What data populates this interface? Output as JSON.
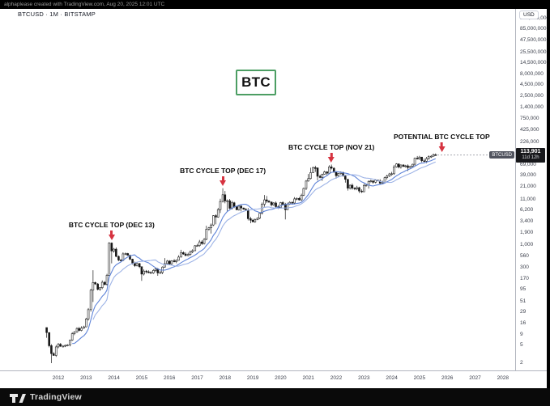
{
  "top_bar": {
    "attribution": "alphaplease created with TradingView.com, Aug 20, 2025 12:01 UTC"
  },
  "header": {
    "symbol_title": "BTCUSD · 1M · BITSTAMP"
  },
  "watermark": {
    "label": "BTC"
  },
  "price_badge": {
    "symbol": "BTCUSD",
    "price": "113,901",
    "countdown": "11d 12h"
  },
  "footer": {
    "brand": "TradingView"
  },
  "colors": {
    "accent_green": "#4c9e63",
    "arrow_red": "#d63340",
    "ma_fast": "#5f84d8",
    "ma_slow": "#9db3e6",
    "candle_up": "#ffffff",
    "candle_down": "#161616",
    "candle_stroke": "#1a1a1a",
    "price_line": "#8a8d97"
  },
  "chart_data": {
    "type": "candlestick",
    "symbol": "BTCUSD",
    "timeframe": "1M",
    "exchange": "BITSTAMP",
    "y_scale": "log",
    "y_unit": "USD",
    "last_price": 113901,
    "ma_periods": [
      12,
      21
    ],
    "y_axis_labels": [
      "150,000,000",
      "85,000,000",
      "47,500,000",
      "25,500,000",
      "14,500,000",
      "8,000,000",
      "4,500,000",
      "2,500,000",
      "1,400,000",
      "750,000",
      "425,000",
      "226,000",
      "69,000",
      "39,000",
      "21,000",
      "11,000",
      "6,200",
      "3,400",
      "1,900",
      "1,000",
      "560",
      "300",
      "170",
      "95",
      "51",
      "29",
      "16",
      "9",
      "5",
      "2"
    ],
    "x_axis_years": [
      "2012",
      "2013",
      "2014",
      "2015",
      "2016",
      "2017",
      "2018",
      "2019",
      "2020",
      "2021",
      "2022",
      "2023",
      "2024",
      "2025",
      "2026",
      "2027",
      "2028"
    ],
    "annotations": [
      {
        "text": "BTC CYCLE TOP (DEC 13)",
        "t": 2013.92,
        "price": 1250
      },
      {
        "text": "BTC CYCLE TOP (DEC 17)",
        "t": 2017.92,
        "price": 21500
      },
      {
        "text": "BTC CYCLE TOP (NOV 21)",
        "t": 2021.83,
        "price": 73000
      },
      {
        "text": "POTENTIAL BTC CYCLE TOP",
        "t": 2025.8,
        "price": 127000
      }
    ],
    "candles": [
      [
        2011.58,
        10,
        11.5,
        7.6
      ],
      [
        2011.67,
        5,
        9,
        4.6
      ],
      [
        2011.75,
        3.3,
        5.4,
        2
      ],
      [
        2011.83,
        3
      ],
      [
        2011.92,
        4.7
      ],
      [
        2012.0,
        5.4
      ],
      [
        2012.08,
        4.9
      ],
      [
        2012.17,
        4.9
      ],
      [
        2012.25,
        5.1
      ],
      [
        2012.33,
        5.2
      ],
      [
        2012.42,
        6.7
      ],
      [
        2012.5,
        9.4
      ],
      [
        2012.58,
        10.2
      ],
      [
        2012.67,
        12.4
      ],
      [
        2012.75,
        11.2
      ],
      [
        2012.83,
        12.6
      ],
      [
        2012.92,
        13.5
      ],
      [
        2013.0,
        20.4
      ],
      [
        2013.08,
        33.4
      ],
      [
        2013.17,
        93,
        100,
        30
      ],
      [
        2013.25,
        139,
        266,
        50
      ],
      [
        2013.33,
        129
      ],
      [
        2013.42,
        97
      ],
      [
        2013.5,
        106
      ],
      [
        2013.58,
        141
      ],
      [
        2013.67,
        126
      ],
      [
        2013.75,
        204
      ],
      [
        2013.83,
        1113,
        1163,
        198
      ],
      [
        2013.92,
        732,
        1150,
        382
      ],
      [
        2014.0,
        806
      ],
      [
        2014.08,
        550
      ],
      [
        2014.17,
        454
      ],
      [
        2014.25,
        446
      ],
      [
        2014.33,
        628
      ],
      [
        2014.42,
        640
      ],
      [
        2014.5,
        583
      ],
      [
        2014.58,
        475
      ],
      [
        2014.67,
        387
      ],
      [
        2014.75,
        338
      ],
      [
        2014.83,
        378
      ],
      [
        2014.92,
        320
      ],
      [
        2015.0,
        217,
        320,
        152
      ],
      [
        2015.08,
        254
      ],
      [
        2015.17,
        244
      ],
      [
        2015.25,
        236
      ],
      [
        2015.33,
        230
      ],
      [
        2015.42,
        263
      ],
      [
        2015.5,
        284
      ],
      [
        2015.58,
        230,
        null,
        198
      ],
      [
        2015.67,
        236
      ],
      [
        2015.75,
        314
      ],
      [
        2015.83,
        377,
        504
      ],
      [
        2015.92,
        430
      ],
      [
        2016.0,
        370
      ],
      [
        2016.08,
        437
      ],
      [
        2016.17,
        416
      ],
      [
        2016.25,
        448
      ],
      [
        2016.33,
        531
      ],
      [
        2016.42,
        670,
        780,
        520
      ],
      [
        2016.5,
        624
      ],
      [
        2016.58,
        575
      ],
      [
        2016.67,
        610
      ],
      [
        2016.75,
        700
      ],
      [
        2016.83,
        742
      ],
      [
        2016.92,
        963
      ],
      [
        2017.0,
        970
      ],
      [
        2017.08,
        1180
      ],
      [
        2017.17,
        1080,
        1290
      ],
      [
        2017.25,
        1350
      ],
      [
        2017.33,
        2300,
        2760
      ],
      [
        2017.42,
        2480
      ],
      [
        2017.5,
        2875,
        null,
        1830
      ],
      [
        2017.58,
        4703
      ],
      [
        2017.67,
        4360,
        null,
        2970
      ],
      [
        2017.75,
        6440
      ],
      [
        2017.83,
        9900,
        11400,
        5400
      ],
      [
        2017.92,
        14100,
        19900,
        9400
      ],
      [
        2018.0,
        10200,
        17200,
        9000
      ],
      [
        2018.08,
        10300,
        null,
        6000
      ],
      [
        2018.17,
        6930
      ],
      [
        2018.25,
        9240
      ],
      [
        2018.33,
        7500
      ],
      [
        2018.42,
        6400
      ],
      [
        2018.5,
        7750
      ],
      [
        2018.58,
        7030,
        null,
        5900
      ],
      [
        2018.67,
        6600
      ],
      [
        2018.75,
        6300
      ],
      [
        2018.83,
        4000,
        null,
        3650
      ],
      [
        2018.92,
        3700,
        4400,
        3150
      ],
      [
        2019.0,
        3400
      ],
      [
        2019.08,
        3820
      ],
      [
        2019.17,
        4100
      ],
      [
        2019.25,
        5320
      ],
      [
        2019.33,
        8560
      ],
      [
        2019.42,
        10800,
        13900,
        7500
      ],
      [
        2019.5,
        10100,
        13200,
        9100
      ],
      [
        2019.58,
        9600
      ],
      [
        2019.67,
        8300
      ],
      [
        2019.75,
        9150
      ],
      [
        2019.83,
        7550
      ],
      [
        2019.92,
        7200
      ],
      [
        2020.0,
        9350
      ],
      [
        2020.08,
        8550
      ],
      [
        2020.17,
        6440,
        9200,
        3850
      ],
      [
        2020.25,
        8620
      ],
      [
        2020.33,
        9450
      ],
      [
        2020.42,
        9140
      ],
      [
        2020.5,
        11350
      ],
      [
        2020.58,
        11650
      ],
      [
        2020.67,
        10780
      ],
      [
        2020.75,
        13800
      ],
      [
        2020.83,
        19700
      ],
      [
        2020.92,
        29000
      ],
      [
        2021.0,
        33100,
        42000,
        28200
      ],
      [
        2021.08,
        45200,
        58400
      ],
      [
        2021.17,
        58800
      ],
      [
        2021.25,
        57800,
        64900,
        46900
      ],
      [
        2021.33,
        37300,
        59500,
        30000
      ],
      [
        2021.42,
        35040
      ],
      [
        2021.5,
        41500,
        null,
        29300
      ],
      [
        2021.58,
        47100
      ],
      [
        2021.67,
        43800,
        null,
        39600
      ],
      [
        2021.75,
        61300,
        67000
      ],
      [
        2021.83,
        57000,
        69000,
        53300
      ],
      [
        2021.92,
        46200
      ],
      [
        2022.0,
        38500,
        null,
        32950
      ],
      [
        2022.08,
        43200
      ],
      [
        2022.17,
        45500
      ],
      [
        2022.25,
        37600
      ],
      [
        2022.33,
        31800,
        null,
        26700
      ],
      [
        2022.42,
        19900,
        32000,
        17600
      ],
      [
        2022.5,
        23300
      ],
      [
        2022.58,
        20000
      ],
      [
        2022.67,
        19400
      ],
      [
        2022.75,
        20500
      ],
      [
        2022.83,
        17160,
        21500,
        15480
      ],
      [
        2022.92,
        16500
      ],
      [
        2023.0,
        23100
      ],
      [
        2023.08,
        23500
      ],
      [
        2023.17,
        28500,
        null,
        19550
      ],
      [
        2023.25,
        29200
      ],
      [
        2023.33,
        27200
      ],
      [
        2023.42,
        30480
      ],
      [
        2023.5,
        29230
      ],
      [
        2023.58,
        25930
      ],
      [
        2023.67,
        26960
      ],
      [
        2023.75,
        34650
      ],
      [
        2023.83,
        37710
      ],
      [
        2023.92,
        42280,
        44700
      ],
      [
        2024.0,
        42580,
        null,
        38500
      ],
      [
        2024.08,
        61200
      ],
      [
        2024.17,
        71330,
        73800,
        59000
      ],
      [
        2024.25,
        60640,
        null,
        56500
      ],
      [
        2024.33,
        67530
      ],
      [
        2024.42,
        62680
      ],
      [
        2024.5,
        64620
      ],
      [
        2024.58,
        58970,
        null,
        49000
      ],
      [
        2024.67,
        63330
      ],
      [
        2024.75,
        70220
      ],
      [
        2024.83,
        96450,
        99800
      ],
      [
        2024.92,
        93430,
        108300
      ],
      [
        2025.0,
        102400,
        109350,
        89200
      ],
      [
        2025.08,
        84350,
        102800,
        78200
      ],
      [
        2025.17,
        82550,
        95000
      ],
      [
        2025.25,
        94210,
        null,
        74400
      ],
      [
        2025.33,
        104600,
        112000
      ],
      [
        2025.42,
        107140,
        null,
        98200
      ],
      [
        2025.5,
        115760,
        123200,
        105100
      ],
      [
        2025.58,
        113901,
        124500,
        111900
      ]
    ]
  }
}
